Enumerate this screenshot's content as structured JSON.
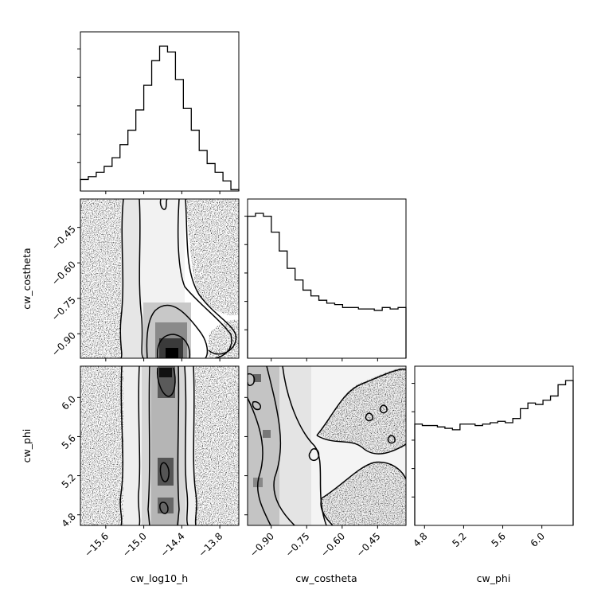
{
  "chart_data": {
    "type": "corner",
    "parameters": [
      "cw_log10_h",
      "cw_costheta",
      "cw_phi"
    ],
    "ranges": {
      "cw_log10_h": [
        -16.0,
        -13.5
      ],
      "cw_costheta": [
        -1.0,
        -0.33
      ],
      "cw_phi": [
        4.7,
        6.32
      ]
    },
    "ticks": {
      "cw_log10_h": {
        "values": [
          -15.6,
          -15.0,
          -14.4,
          -13.8
        ],
        "labels": [
          "−15.6",
          "−15.0",
          "−14.4",
          "−13.8"
        ]
      },
      "cw_costheta_x": {
        "values": [
          -0.9,
          -0.75,
          -0.6,
          -0.45
        ],
        "labels": [
          "−0.90",
          "−0.75",
          "−0.60",
          "−0.45"
        ]
      },
      "cw_costheta_y": {
        "values": [
          -0.9,
          -0.75,
          -0.6,
          -0.45
        ],
        "labels": [
          "−0.90",
          "−0.75",
          "−0.60",
          "−0.45"
        ]
      },
      "cw_phi": {
        "values": [
          4.8,
          5.2,
          5.6,
          6.0
        ],
        "labels": [
          "4.8",
          "5.2",
          "5.6",
          "6.0"
        ]
      }
    },
    "histograms": [
      {
        "parameter": "cw_log10_h",
        "values": [
          0.08,
          0.1,
          0.13,
          0.17,
          0.23,
          0.32,
          0.42,
          0.56,
          0.73,
          0.9,
          1.0,
          0.96,
          0.77,
          0.57,
          0.42,
          0.28,
          0.19,
          0.13,
          0.07,
          0.01
        ]
      },
      {
        "parameter": "cw_costheta",
        "values": [
          0.98,
          1.0,
          0.98,
          0.87,
          0.74,
          0.62,
          0.54,
          0.47,
          0.43,
          0.4,
          0.38,
          0.37,
          0.35,
          0.35,
          0.34,
          0.34,
          0.33,
          0.35,
          0.34,
          0.35
        ]
      },
      {
        "parameter": "cw_phi",
        "values": [
          0.72,
          0.71,
          0.71,
          0.7,
          0.69,
          0.68,
          0.72,
          0.72,
          0.71,
          0.72,
          0.73,
          0.74,
          0.73,
          0.76,
          0.83,
          0.87,
          0.86,
          0.89,
          0.92,
          1.0,
          1.03
        ]
      }
    ],
    "grid": false,
    "legend": "none"
  }
}
